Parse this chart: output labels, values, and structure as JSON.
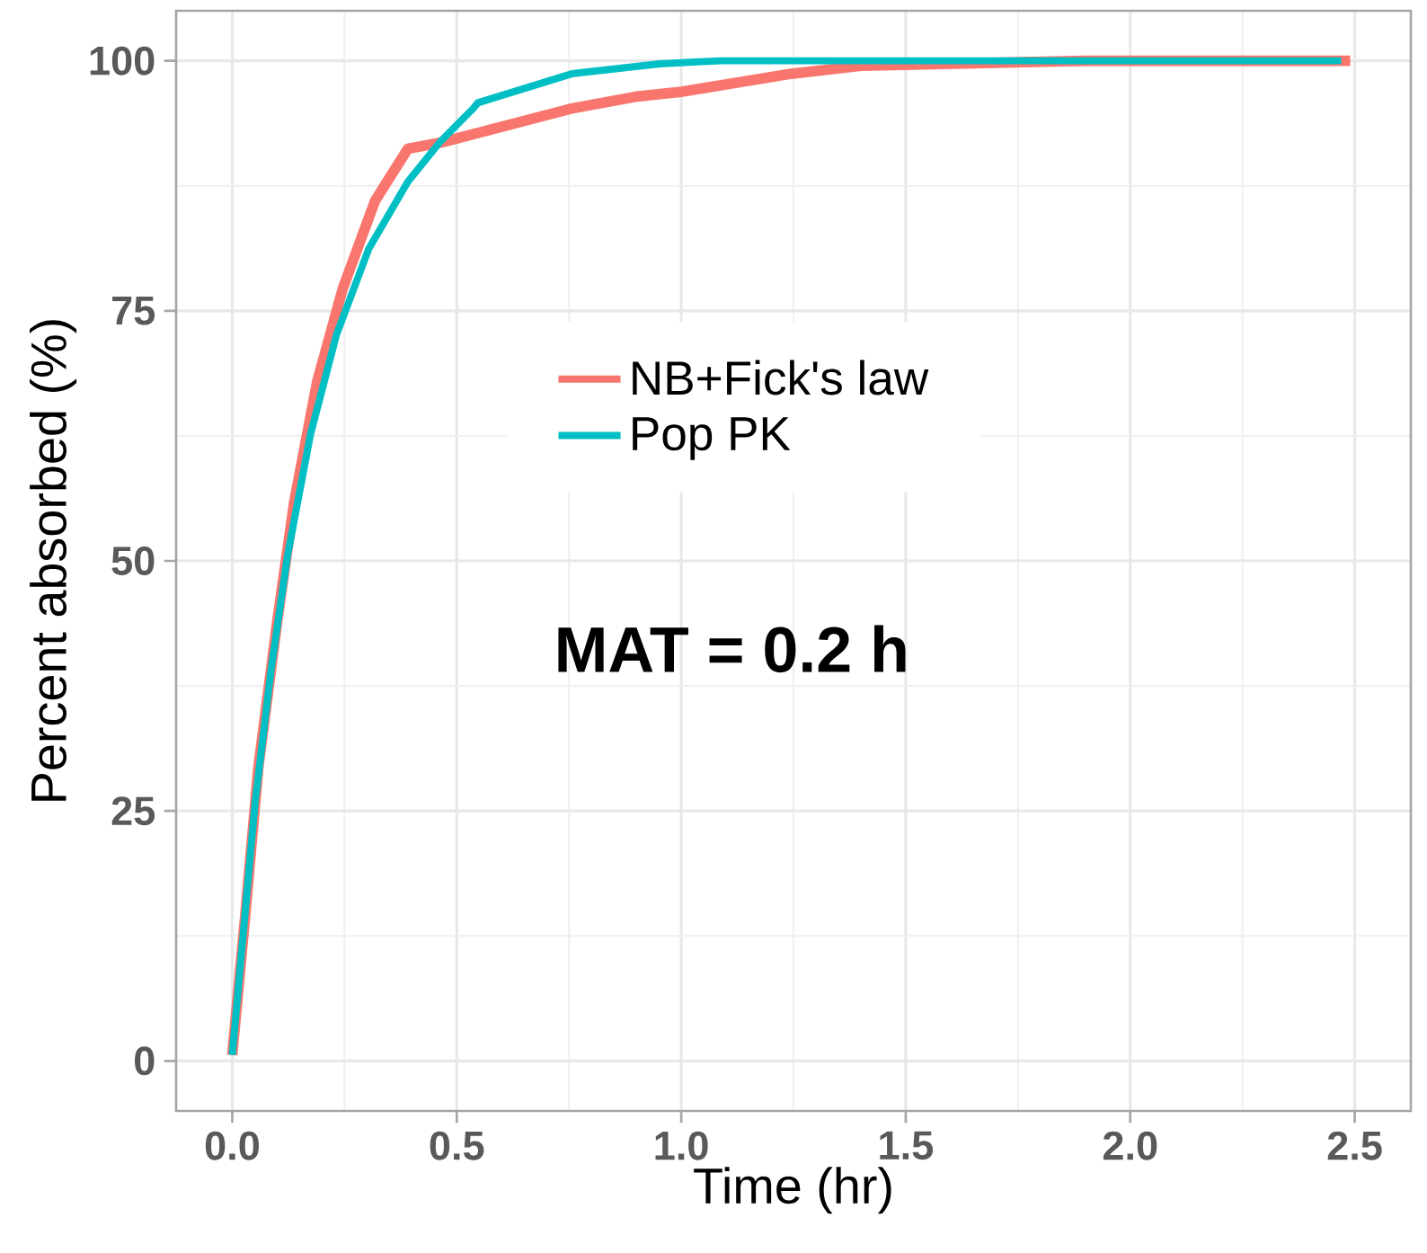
{
  "chart_data": {
    "type": "line",
    "xlabel": "Time (hr)",
    "ylabel": "Percent absorbed (%)",
    "annotations": [
      "MAT = 0.2 h"
    ],
    "xlim": [
      -0.125,
      2.625
    ],
    "ylim": [
      -5,
      105
    ],
    "xticks": [
      {
        "value": 0,
        "label": "0.0"
      },
      {
        "value": 0.5,
        "label": "0.5"
      },
      {
        "value": 1,
        "label": "1.0"
      },
      {
        "value": 1.5,
        "label": "1.5"
      },
      {
        "value": 2,
        "label": "2.0"
      },
      {
        "value": 2.5,
        "label": "2.5"
      }
    ],
    "yticks": [
      0,
      25,
      50,
      75,
      100
    ],
    "grid": true,
    "legend": "center",
    "marker": "none",
    "line_style": "solid",
    "series": [
      {
        "name": "NB+Fick's law",
        "color": "#f8766d",
        "x": [
          0,
          0.029,
          0.058,
          0.1,
          0.138,
          0.189,
          0.246,
          0.318,
          0.391,
          0.463,
          0.608,
          0.753,
          0.897,
          1.0,
          1.245,
          1.4,
          1.9,
          2.49
        ],
        "values": [
          0.6,
          14.6,
          29.3,
          43.9,
          55.9,
          67.9,
          77.2,
          86,
          91.2,
          91.8,
          93.5,
          95.2,
          96.4,
          96.9,
          98.7,
          99.5,
          100,
          100
        ]
      },
      {
        "name": "Pop PK",
        "color": "#00bfc4",
        "x": [
          0,
          0.051,
          0.087,
          0.123,
          0.174,
          0.232,
          0.304,
          0.391,
          0.463,
          0.536,
          0.547,
          0.756,
          0.952,
          1.09,
          2.47
        ],
        "values": [
          0.6,
          25.9,
          39.3,
          50.5,
          62.6,
          72.6,
          81.2,
          87.9,
          91.9,
          95.2,
          95.8,
          98.7,
          99.7,
          100,
          100
        ]
      }
    ]
  }
}
